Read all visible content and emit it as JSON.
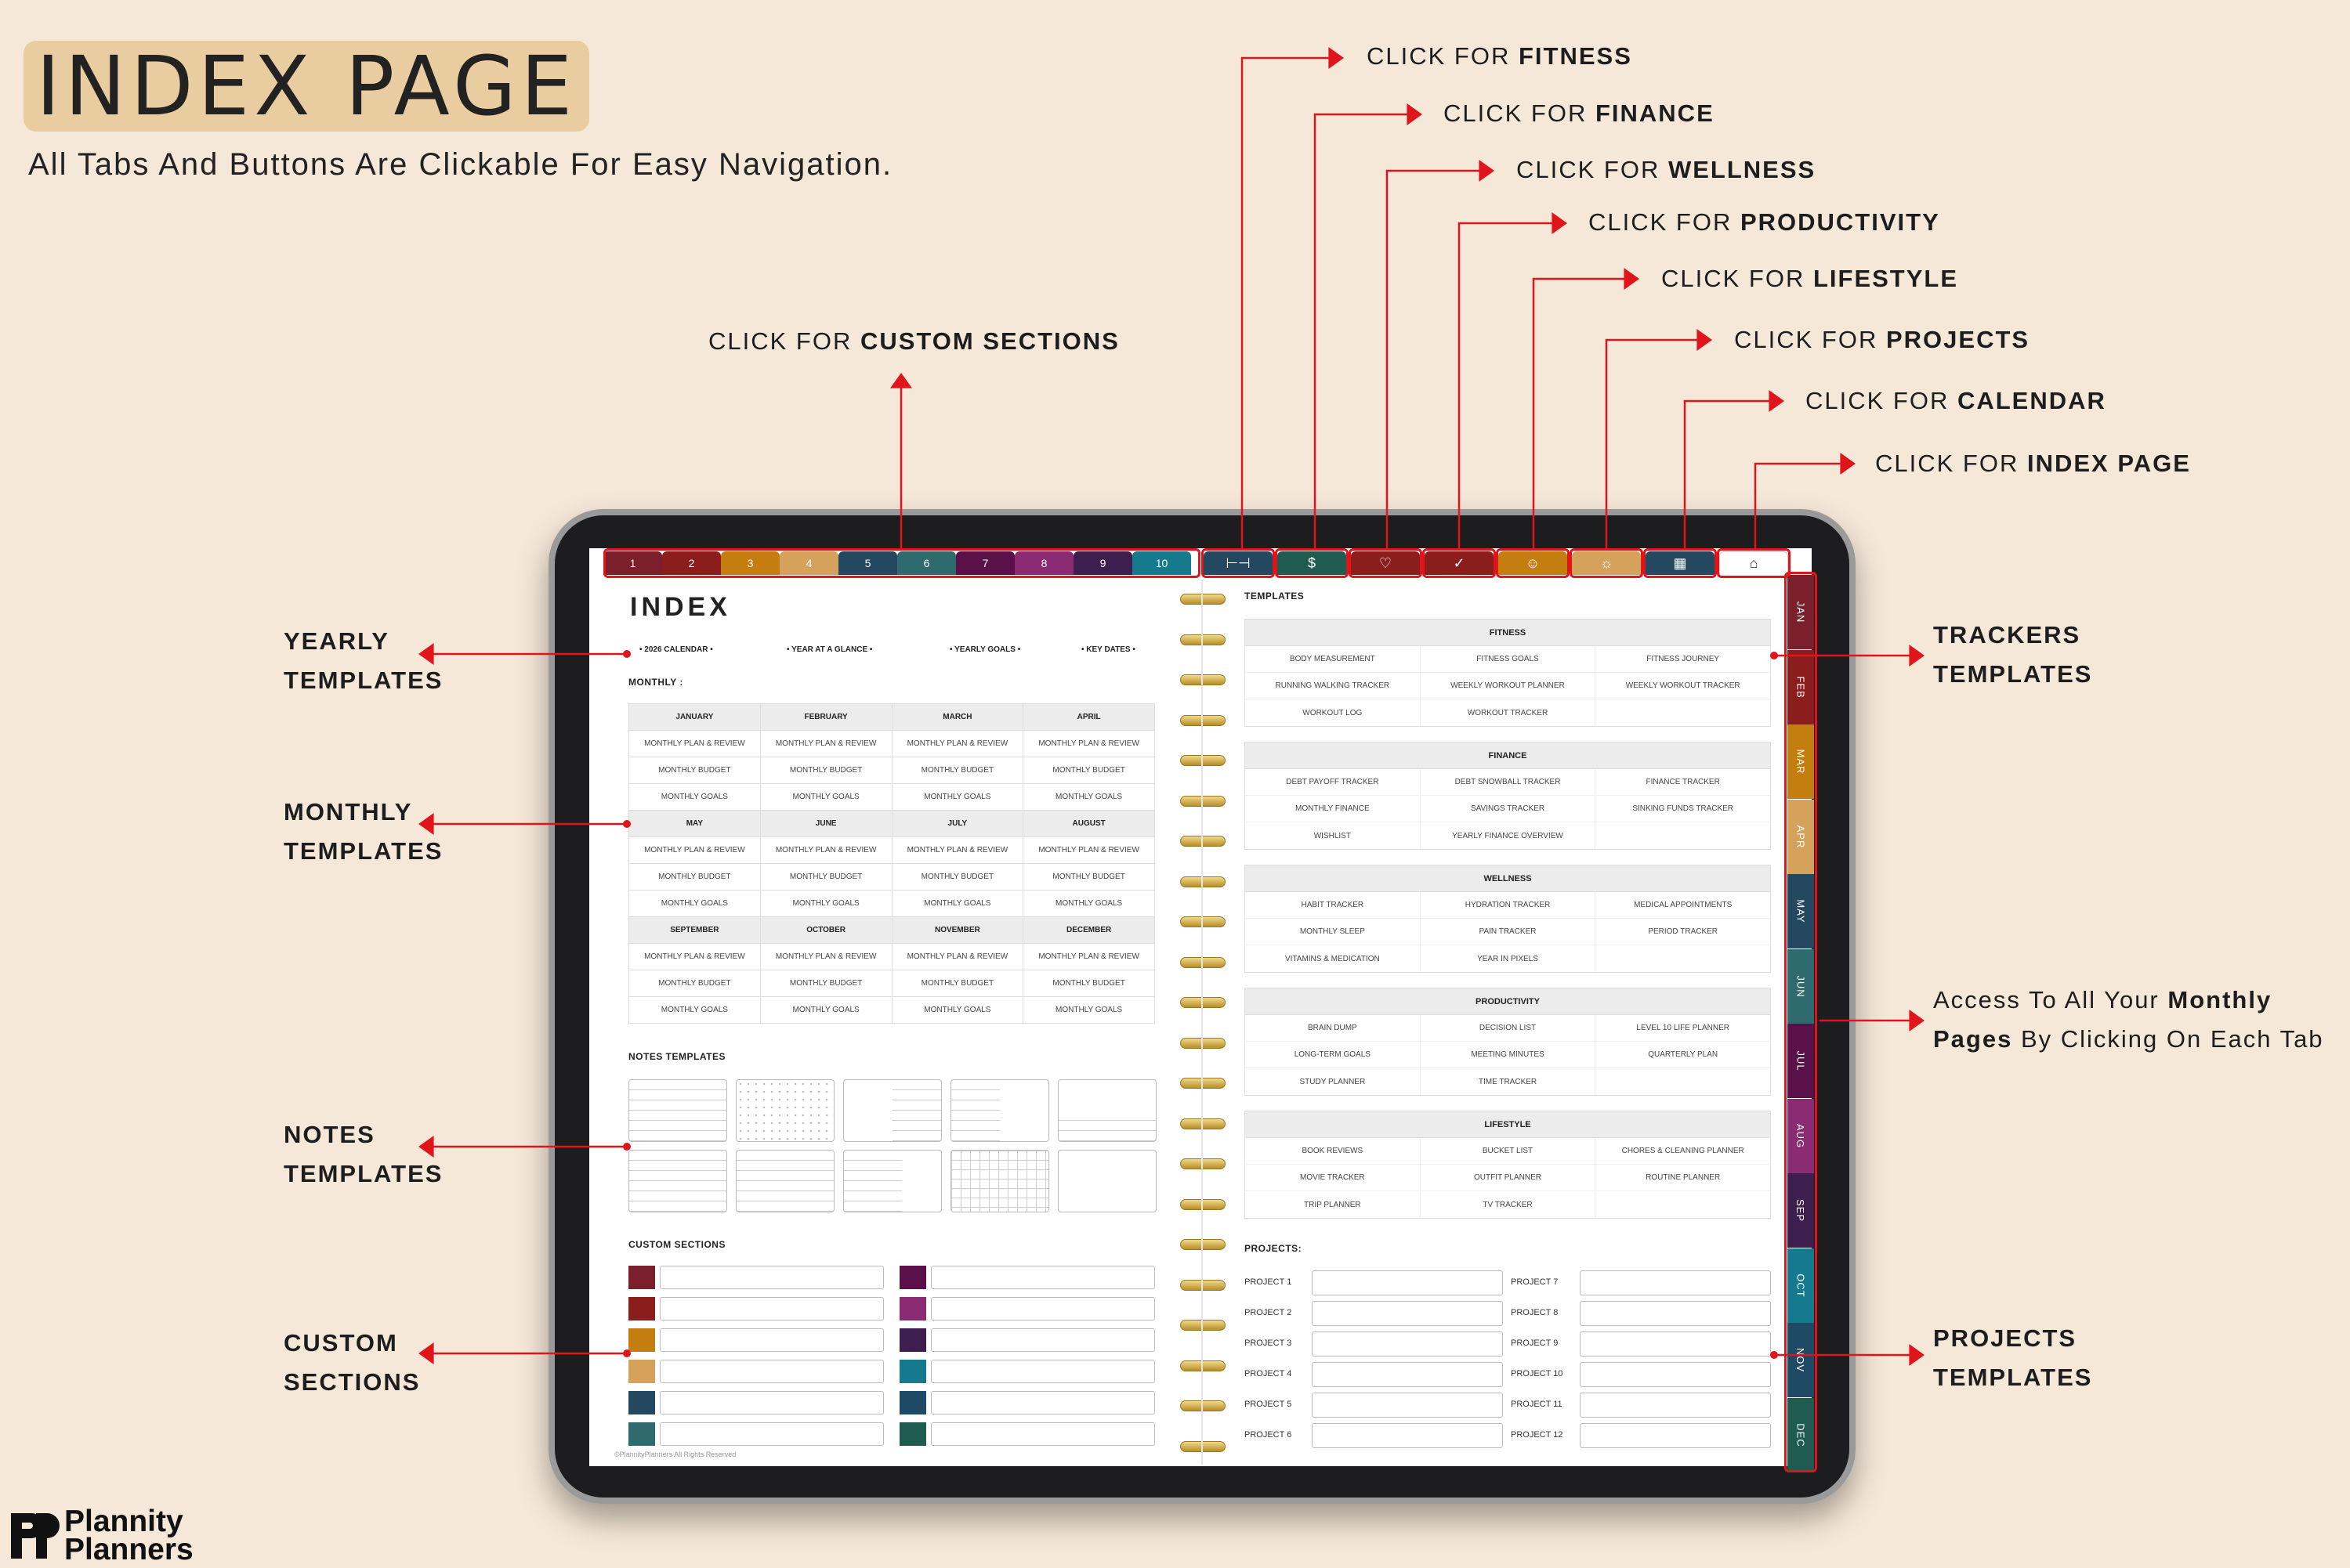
{
  "header": {
    "title": "INDEX PAGE",
    "subtitle": "All Tabs And Buttons Are Clickable For Easy Navigation."
  },
  "callouts": {
    "custom_sections": {
      "prefix": "CLICK FOR ",
      "bold": "CUSTOM SECTIONS"
    },
    "fitness": {
      "prefix": "CLICK FOR ",
      "bold": "FITNESS"
    },
    "finance": {
      "prefix": "CLICK FOR ",
      "bold": "FINANCE"
    },
    "wellness": {
      "prefix": "CLICK FOR ",
      "bold": "WELLNESS"
    },
    "productivity": {
      "prefix": "CLICK FOR ",
      "bold": "PRODUCTIVITY"
    },
    "lifestyle": {
      "prefix": "CLICK FOR ",
      "bold": "LIFESTYLE"
    },
    "projects": {
      "prefix": "CLICK FOR ",
      "bold": "PROJECTS"
    },
    "calendar": {
      "prefix": "CLICK FOR ",
      "bold": "CALENDAR"
    },
    "index_page": {
      "prefix": "CLICK FOR ",
      "bold": "INDEX PAGE"
    }
  },
  "left_labels": {
    "yearly": [
      "YEARLY",
      "TEMPLATES"
    ],
    "monthly": [
      "MONTHLY",
      "TEMPLATES"
    ],
    "notes": [
      "NOTES",
      "TEMPLATES"
    ],
    "custom": [
      "CUSTOM",
      "SECTIONS"
    ]
  },
  "right_labels": {
    "trackers": [
      "TRACKERS",
      "TEMPLATES"
    ],
    "monthly_access": {
      "line1_prefix": "Access To All Your ",
      "line1_bold": "Monthly",
      "line2_bold": "Pages",
      "line2_suffix": " By Clicking On Each Tab"
    },
    "projects": [
      "PROJECTS",
      "TEMPLATES"
    ]
  },
  "tabs": {
    "numbered": [
      {
        "label": "1",
        "color": "#7a1f2b"
      },
      {
        "label": "2",
        "color": "#8c1d1d"
      },
      {
        "label": "3",
        "color": "#c47d0f"
      },
      {
        "label": "4",
        "color": "#d4a25a"
      },
      {
        "label": "5",
        "color": "#23485f"
      },
      {
        "label": "6",
        "color": "#2f6a6e"
      },
      {
        "label": "7",
        "color": "#5a1048"
      },
      {
        "label": "8",
        "color": "#8a2b74"
      },
      {
        "label": "9",
        "color": "#3d1e4f"
      },
      {
        "label": "10",
        "color": "#167a8e"
      }
    ],
    "sections": [
      {
        "icon": "dumbbell-icon",
        "glyph": "⊢⊣",
        "color": "#23485f"
      },
      {
        "icon": "dollar-icon",
        "glyph": "$",
        "color": "#1f5b4f"
      },
      {
        "icon": "heart-icon",
        "glyph": "♡",
        "color": "#8c1d1d"
      },
      {
        "icon": "check-circle-icon",
        "glyph": "✓",
        "color": "#8c1d1d"
      },
      {
        "icon": "person-icon",
        "glyph": "☺",
        "color": "#c47d0f"
      },
      {
        "icon": "lightbulb-icon",
        "glyph": "☼",
        "color": "#d4a25a"
      },
      {
        "icon": "calendar-icon",
        "glyph": "▦",
        "color": "#23485f"
      },
      {
        "icon": "home-icon",
        "glyph": "⌂",
        "color": "#ffffff"
      }
    ],
    "months": [
      {
        "label": "JAN",
        "color": "#7a1f2b"
      },
      {
        "label": "FEB",
        "color": "#8c1d1d"
      },
      {
        "label": "MAR",
        "color": "#c47d0f"
      },
      {
        "label": "APR",
        "color": "#d4a25a"
      },
      {
        "label": "MAY",
        "color": "#23485f"
      },
      {
        "label": "JUN",
        "color": "#2f6a6e"
      },
      {
        "label": "JUL",
        "color": "#5a1048"
      },
      {
        "label": "AUG",
        "color": "#8a2b74"
      },
      {
        "label": "SEP",
        "color": "#3d1e4f"
      },
      {
        "label": "OCT",
        "color": "#167a8e"
      },
      {
        "label": "NOV",
        "color": "#1e4a66"
      },
      {
        "label": "DEC",
        "color": "#1f5b4f"
      }
    ]
  },
  "left_page": {
    "title": "INDEX",
    "yearly_links": [
      "2026 CALENDAR",
      "YEAR AT A GLANCE",
      "YEARLY GOALS",
      "KEY DATES"
    ],
    "monthly_heading": "MONTHLY :",
    "month_groups": [
      [
        "JANUARY",
        "FEBRUARY",
        "MARCH",
        "APRIL"
      ],
      [
        "MAY",
        "JUNE",
        "JULY",
        "AUGUST"
      ],
      [
        "SEPTEMBER",
        "OCTOBER",
        "NOVEMBER",
        "DECEMBER"
      ]
    ],
    "month_rows": [
      "MONTHLY PLAN & REVIEW",
      "MONTHLY BUDGET",
      "MONTHLY GOALS"
    ],
    "notes_heading": "NOTES TEMPLATES",
    "custom_heading": "CUSTOM SECTIONS",
    "custom_colors_left": [
      "#7a1f2b",
      "#8c1d1d",
      "#c47d0f",
      "#d4a25a",
      "#23485f",
      "#2f6a6e"
    ],
    "custom_colors_right": [
      "#5a1048",
      "#8a2b74",
      "#3d1e4f",
      "#167a8e",
      "#1e4a66",
      "#1f5b4f"
    ],
    "copyright": "©PlannityPlanners All Rights Reserved"
  },
  "right_page": {
    "templates_heading": "TEMPLATES",
    "cards": [
      {
        "title": "FITNESS",
        "rows": [
          [
            "BODY MEASUREMENT",
            "FITNESS GOALS",
            "FITNESS JOURNEY"
          ],
          [
            "RUNNING WALKING TRACKER",
            "WEEKLY WORKOUT PLANNER",
            "WEEKLY WORKOUT TRACKER"
          ],
          [
            "WORKOUT LOG",
            "WORKOUT TRACKER",
            ""
          ]
        ]
      },
      {
        "title": "FINANCE",
        "rows": [
          [
            "DEBT PAYOFF TRACKER",
            "DEBT SNOWBALL TRACKER",
            "FINANCE TRACKER"
          ],
          [
            "MONTHLY FINANCE",
            "SAVINGS TRACKER",
            "SINKING FUNDS TRACKER"
          ],
          [
            "WISHLIST",
            "YEARLY FINANCE OVERVIEW",
            ""
          ]
        ]
      },
      {
        "title": "WELLNESS",
        "rows": [
          [
            "HABIT TRACKER",
            "HYDRATION TRACKER",
            "MEDICAL APPOINTMENTS"
          ],
          [
            "MONTHLY SLEEP",
            "PAIN TRACKER",
            "PERIOD TRACKER"
          ],
          [
            "VITAMINS & MEDICATION",
            "YEAR IN PIXELS",
            ""
          ]
        ]
      },
      {
        "title": "PRODUCTIVITY",
        "rows": [
          [
            "BRAIN DUMP",
            "DECISION LIST",
            "LEVEL 10 LIFE PLANNER"
          ],
          [
            "LONG-TERM GOALS",
            "MEETING MINUTES",
            "QUARTERLY PLAN"
          ],
          [
            "STUDY PLANNER",
            "TIME TRACKER",
            ""
          ]
        ]
      },
      {
        "title": "LIFESTYLE",
        "rows": [
          [
            "BOOK REVIEWS",
            "BUCKET LIST",
            "CHORES & CLEANING PLANNER"
          ],
          [
            "MOVIE TRACKER",
            "OUTFIT PLANNER",
            "ROUTINE PLANNER"
          ],
          [
            "TRIP PLANNER",
            "TV TRACKER",
            ""
          ]
        ]
      }
    ],
    "projects_heading": "PROJECTS:",
    "projects_left": [
      "PROJECT 1",
      "PROJECT 2",
      "PROJECT 3",
      "PROJECT 4",
      "PROJECT 5",
      "PROJECT 6"
    ],
    "projects_right": [
      "PROJECT 7",
      "PROJECT 8",
      "PROJECT 9",
      "PROJECT 10",
      "PROJECT 11",
      "PROJECT 12"
    ]
  },
  "brand": {
    "line1": "Plannity",
    "line2": "Planners"
  },
  "colors": {
    "arrow": "#e0141b",
    "background": "#f6e8d9",
    "title_highlight": "#e9cc9f"
  }
}
